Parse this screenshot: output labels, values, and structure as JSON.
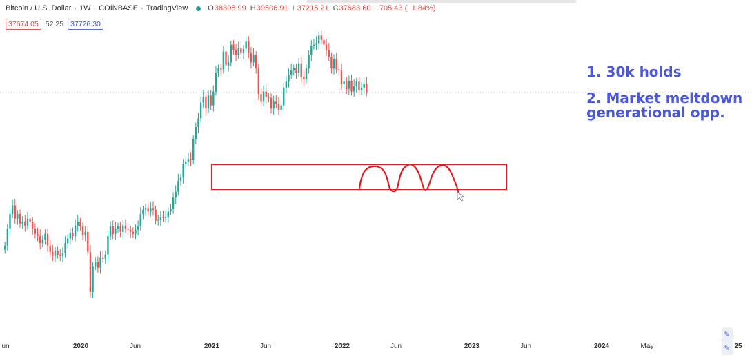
{
  "header": {
    "symbol": "Bitcoin / U.S. Dollar",
    "sep1": "·",
    "interval": "1W",
    "sep2": "·",
    "exchange": "COINBASE",
    "sep3": "·",
    "source": "TradingView",
    "ohlc": {
      "open_label": "O",
      "open": "38395.99",
      "high_label": "H",
      "high": "39506.91",
      "low_label": "L",
      "low": "37215.21",
      "close_label": "C",
      "close": "37683.60",
      "change": "−705.43 (−1.84%)"
    },
    "bid": "37674.05",
    "spread": "52.25",
    "ask": "37726.30"
  },
  "notes": {
    "line1": "1. 30k holds",
    "line2a": "2. Market meltdown",
    "line2b": "generational opp."
  },
  "xaxis": {
    "ticks": [
      "un",
      "2020",
      "Jun",
      "2021",
      "Jun",
      "2022",
      "Jun",
      "2023",
      "Jun",
      "2024",
      "May",
      "25"
    ]
  },
  "colors": {
    "up": "#26a69a",
    "down": "#ef5350",
    "annotation": "#e8181e",
    "note_text": "#4c58d6"
  },
  "chart_data": {
    "type": "candlestick",
    "symbol": "Bitcoin / U.S. Dollar",
    "interval": "1W",
    "x_start": "2019-06",
    "weekly_close_approx": [
      8000,
      9500,
      11000,
      12000,
      10500,
      11000,
      10000,
      10200,
      9800,
      10500,
      10200,
      9500,
      9000,
      8800,
      8200,
      8500,
      9000,
      8000,
      7500,
      7200,
      7600,
      7300,
      7200,
      7400,
      8200,
      8600,
      9100,
      8800,
      9800,
      10200,
      9700,
      8900,
      9200,
      7500,
      5000,
      6500,
      6800,
      6400,
      7100,
      7000,
      7300,
      8800,
      9700,
      9000,
      9500,
      9700,
      9200,
      9800,
      9500,
      9400,
      9200,
      9000,
      9400,
      9700,
      11000,
      11500,
      11700,
      11300,
      11700,
      11500,
      10300,
      10400,
      10700,
      10600,
      10700,
      11300,
      11600,
      13000,
      13800,
      15400,
      15900,
      18300,
      18700,
      19200,
      19000,
      23500,
      26500,
      29000,
      34000,
      36000,
      32000,
      36500,
      33000,
      38000,
      46000,
      48000,
      47500,
      57000,
      49500,
      51000,
      61000,
      58000,
      55000,
      59000,
      56000,
      58500,
      63000,
      56000,
      51000,
      55000,
      48000,
      37000,
      34500,
      38000,
      36000,
      35600,
      32000,
      34500,
      33500,
      31500,
      33000,
      39500,
      42000,
      45000,
      47000,
      48000,
      46000,
      50500,
      44000,
      43000,
      48000,
      55000,
      60500,
      61000,
      62000,
      67000,
      64000,
      61000,
      58000,
      54000,
      48000,
      53000,
      47500,
      47000,
      41000,
      42000,
      39000,
      42300,
      38000,
      40000,
      42000,
      38500,
      39500,
      41000,
      37683
    ]
  }
}
